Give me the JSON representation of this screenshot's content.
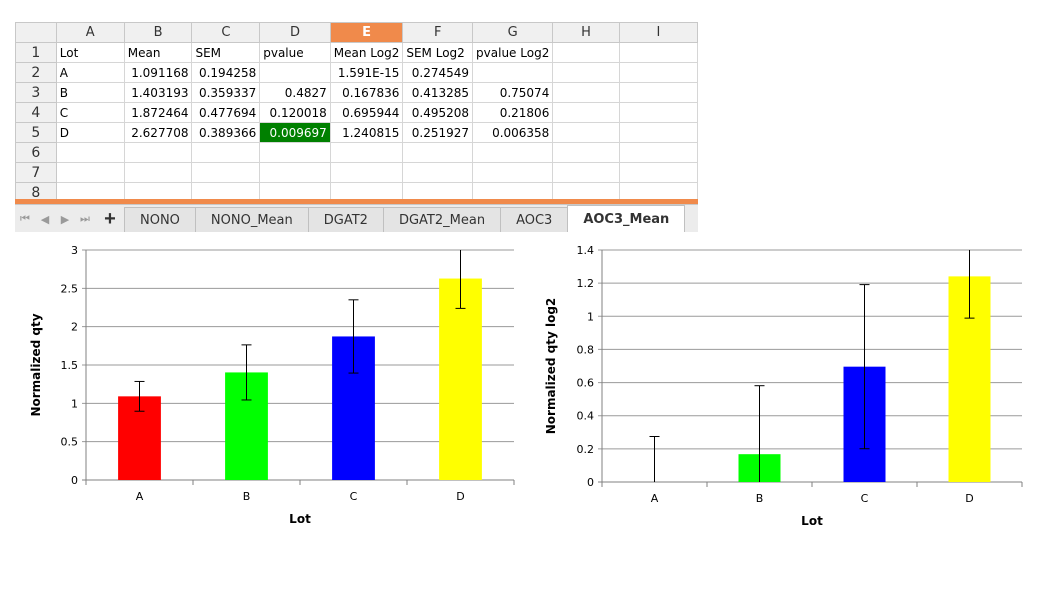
{
  "spreadsheet": {
    "columns": [
      "A",
      "B",
      "C",
      "D",
      "E",
      "F",
      "G",
      "H",
      "I"
    ],
    "selected_column": "E",
    "row_numbers": [
      "1",
      "2",
      "3",
      "4",
      "5",
      "6",
      "7",
      "8"
    ],
    "header_row": [
      "Lot",
      "Mean",
      "SEM",
      "pvalue",
      "Mean Log2",
      "SEM Log2",
      "pvalue Log2"
    ],
    "rows": [
      [
        "A",
        "1.091168",
        "0.194258",
        "",
        "1.591E-15",
        "0.274549",
        ""
      ],
      [
        "B",
        "1.403193",
        "0.359337",
        "0.4827",
        "0.167836",
        "0.413285",
        "0.75074"
      ],
      [
        "C",
        "1.872464",
        "0.477694",
        "0.120018",
        "0.695944",
        "0.495208",
        "0.21806"
      ],
      [
        "D",
        "2.627708",
        "0.389366",
        "0.009697",
        "1.240815",
        "0.251927",
        "0.006358"
      ]
    ],
    "highlight_cell": {
      "row": 3,
      "col": 3,
      "color": "#008000"
    }
  },
  "tabs": {
    "nav_first": "⏮",
    "nav_prev": "◀",
    "nav_next": "▶",
    "nav_last": "⏭",
    "add_label": "+",
    "items": [
      "NONO",
      "NONO_Mean",
      "DGAT2",
      "DGAT2_Mean",
      "AOC3",
      "AOC3_Mean"
    ],
    "active": "AOC3_Mean"
  },
  "chart_data": [
    {
      "type": "bar",
      "categories": [
        "A",
        "B",
        "C",
        "D"
      ],
      "values": [
        1.091168,
        1.403193,
        1.872464,
        2.627708
      ],
      "errors": [
        0.194258,
        0.359337,
        0.477694,
        0.389366
      ],
      "colors": [
        "#ff0000",
        "#00ff00",
        "#0000ff",
        "#ffff00"
      ],
      "xlabel": "Lot",
      "ylabel": "Normalized qty",
      "ylim": [
        0,
        3
      ],
      "yticks": [
        0,
        0.5,
        1,
        1.5,
        2,
        2.5,
        3
      ],
      "ytick_labels": [
        "0",
        "0.5",
        "1",
        "1.5",
        "2",
        "2.5",
        "3"
      ],
      "grid": true
    },
    {
      "type": "bar",
      "categories": [
        "A",
        "B",
        "C",
        "D"
      ],
      "values": [
        0,
        0.167836,
        0.695944,
        1.240815
      ],
      "errors": [
        0.274549,
        0.413285,
        0.495208,
        0.251927
      ],
      "colors": [
        "#ff0000",
        "#00ff00",
        "#0000ff",
        "#ffff00"
      ],
      "xlabel": "Lot",
      "ylabel": "Normalized qty log2",
      "ylim": [
        0,
        1.4
      ],
      "yticks": [
        0,
        0.2,
        0.4,
        0.6,
        0.8,
        1,
        1.2,
        1.4
      ],
      "ytick_labels": [
        "0",
        "0.2",
        "0.4",
        "0.6",
        "0.8",
        "1",
        "1.2",
        "1.4"
      ],
      "grid": true
    }
  ]
}
